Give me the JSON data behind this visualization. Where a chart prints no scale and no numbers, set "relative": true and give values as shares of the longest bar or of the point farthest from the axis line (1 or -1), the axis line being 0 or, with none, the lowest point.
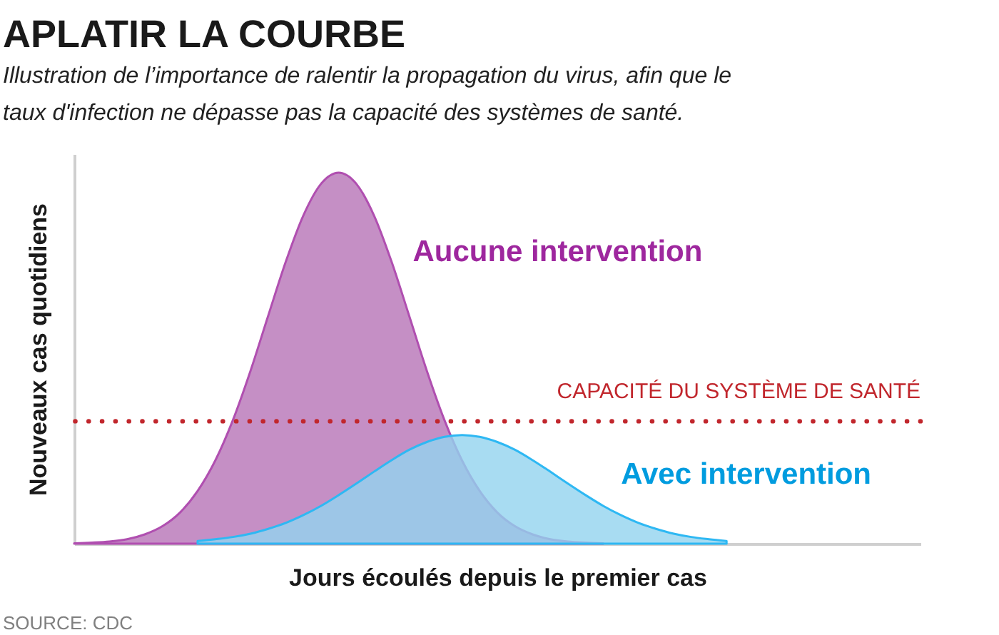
{
  "chart_data": {
    "type": "area",
    "title": "APLATIR LA COURBE",
    "subtitle": "Illustration de l’importance de ralentir la propagation du virus, afin que le taux d'infection ne dépasse pas la capacité des systèmes de santé.",
    "xlabel": "Jours écoulés depuis le premier cas",
    "ylabel": "Nouveaux cas quotidiens",
    "relative": true,
    "tick_labels": false,
    "categories": [
      null,
      null,
      null,
      null,
      null,
      null,
      null,
      null,
      null,
      null,
      null,
      null,
      null,
      null,
      null,
      null,
      null,
      null,
      null,
      null,
      null,
      null,
      null,
      null,
      null,
      null,
      null,
      null,
      null,
      null,
      null,
      null,
      null,
      null,
      null,
      null,
      null,
      null,
      null,
      null,
      null,
      null,
      null,
      null,
      null,
      null,
      null,
      null,
      null
    ],
    "series": [
      {
        "name": "Aucune intervention",
        "color": "#c58fc5",
        "values": [
          0.001,
          0.003,
          0.006,
          0.012,
          0.025,
          0.047,
          0.084,
          0.142,
          0.224,
          0.333,
          0.466,
          0.614,
          0.76,
          0.885,
          0.97,
          1,
          0.97,
          0.885,
          0.76,
          0.614,
          0.466,
          0.333,
          0.224,
          0.142,
          0.084,
          0.047,
          0.025,
          0.012,
          0.006,
          0.003,
          0.001,
          null,
          null,
          null,
          null,
          null,
          null,
          null,
          null,
          null,
          null,
          null,
          null,
          null,
          null,
          null,
          null,
          null,
          null
        ]
      },
      {
        "name": "Avec intervention",
        "color": "#92d3ef",
        "values": [
          null,
          null,
          null,
          null,
          null,
          null,
          null,
          0.007,
          0.012,
          0.018,
          0.027,
          0.04,
          0.056,
          0.077,
          0.102,
          0.131,
          0.162,
          0.194,
          0.225,
          0.253,
          0.274,
          0.288,
          0.293,
          0.288,
          0.274,
          0.253,
          0.225,
          0.194,
          0.162,
          0.131,
          0.102,
          0.077,
          0.056,
          0.04,
          0.027,
          0.018,
          0.012,
          0.007,
          null,
          null,
          null,
          null,
          null,
          null,
          null,
          null,
          null,
          null,
          null
        ]
      }
    ],
    "ref_lines": [
      {
        "axis": "y",
        "value": 0.33,
        "label": "CAPACITÉ DU SYSTÈME DE SANTÉ",
        "color": "#c1272d",
        "line_style": "dotted"
      }
    ],
    "annotations": [
      "SOURCE: CDC"
    ]
  }
}
